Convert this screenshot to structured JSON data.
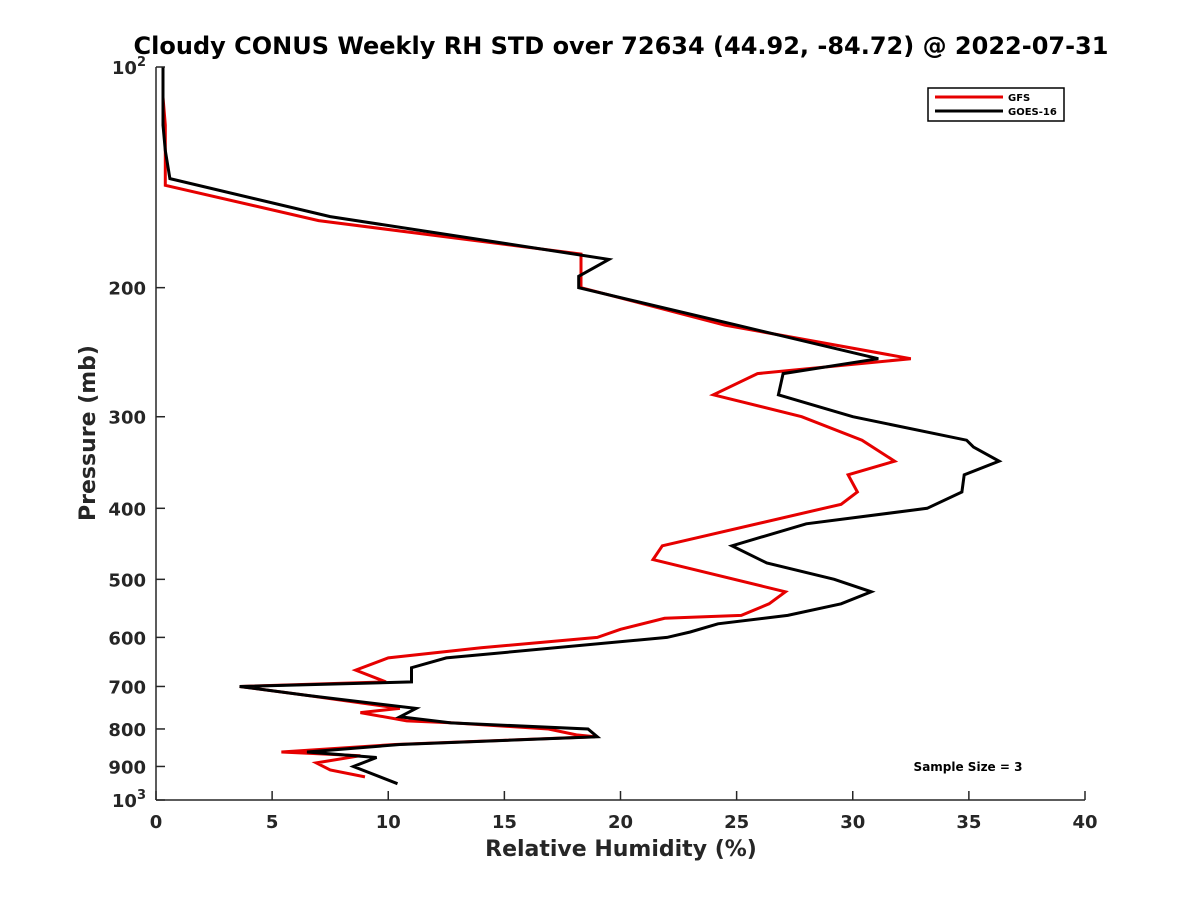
{
  "chart_data": {
    "type": "line",
    "title": "Cloudy CONUS Weekly RH STD over 72634 (44.92, -84.72) @ 2022-07-31",
    "xlabel": "Relative Humidity (%)",
    "ylabel": "Pressure (mb)",
    "xlim": [
      0,
      40
    ],
    "ylim": [
      100,
      1000
    ],
    "y_scale": "log",
    "y_reversed": true,
    "x_ticks": [
      "0",
      "5",
      "10",
      "15",
      "20",
      "25",
      "30",
      "35",
      "40"
    ],
    "x_tick_values": [
      0,
      5,
      10,
      15,
      20,
      25,
      30,
      35,
      40
    ],
    "y_tick_values": [
      100,
      200,
      300,
      400,
      500,
      600,
      700,
      800,
      900,
      1000
    ],
    "y_ticks": [
      {
        "base": "10",
        "exp": "2"
      },
      {
        "text": "200"
      },
      {
        "text": "300"
      },
      {
        "text": "400"
      },
      {
        "text": "500"
      },
      {
        "text": "600"
      },
      {
        "text": "700"
      },
      {
        "text": "800"
      },
      {
        "text": "900"
      },
      {
        "base": "10",
        "exp": "3"
      }
    ],
    "legend_position": "top-right",
    "grid": false,
    "series": [
      {
        "name": "GFS",
        "color": "#e60000",
        "x": [
          0.3,
          0.3,
          0.4,
          0.4,
          0.4,
          0.4,
          7.0,
          18.3,
          18.3,
          24.5,
          32.5,
          25.9,
          24.0,
          27.8,
          30.4,
          31.8,
          29.8,
          30.2,
          29.5,
          21.8,
          21.4,
          27.1,
          26.4,
          25.2,
          21.9,
          20.0,
          19.0,
          14.0,
          10.0,
          8.6,
          9.9,
          3.6,
          6.5,
          10.5,
          8.8,
          10.8,
          12.8,
          16.9,
          18.1,
          18.9,
          10.3,
          5.4,
          8.8,
          6.9,
          7.5,
          9.0
        ],
        "y": [
          100,
          110,
          120,
          130,
          140,
          145,
          162,
          180,
          200,
          225,
          250,
          262,
          280,
          300,
          323,
          345,
          360,
          380,
          395,
          450,
          470,
          520,
          540,
          560,
          565,
          585,
          600,
          620,
          640,
          665,
          690,
          700,
          720,
          750,
          760,
          780,
          785,
          800,
          815,
          820,
          840,
          860,
          870,
          890,
          910,
          930
        ]
      },
      {
        "name": "GOES-16",
        "color": "#000000",
        "x": [
          0.3,
          0.3,
          0.3,
          0.4,
          0.6,
          7.5,
          19.5,
          18.2,
          18.2,
          25.0,
          31.1,
          27.0,
          26.8,
          30.0,
          34.9,
          35.2,
          36.3,
          34.8,
          34.7,
          33.2,
          28.0,
          24.8,
          26.3,
          29.2,
          30.8,
          29.5,
          27.2,
          24.2,
          23.0,
          22.0,
          12.5,
          11.0,
          11.0,
          3.6,
          6.5,
          11.2,
          10.5,
          12.7,
          18.6,
          19.0,
          10.5,
          6.5,
          9.5,
          8.5,
          10.4
        ],
        "y": [
          100,
          110,
          120,
          130,
          142,
          160,
          183,
          193,
          200,
          225,
          250,
          262,
          280,
          300,
          323,
          330,
          345,
          360,
          380,
          400,
          420,
          450,
          475,
          500,
          520,
          540,
          560,
          575,
          590,
          600,
          640,
          660,
          690,
          700,
          720,
          750,
          770,
          785,
          800,
          820,
          840,
          860,
          875,
          900,
          950
        ]
      }
    ],
    "annotations": [
      "Sample Size = 3"
    ]
  }
}
